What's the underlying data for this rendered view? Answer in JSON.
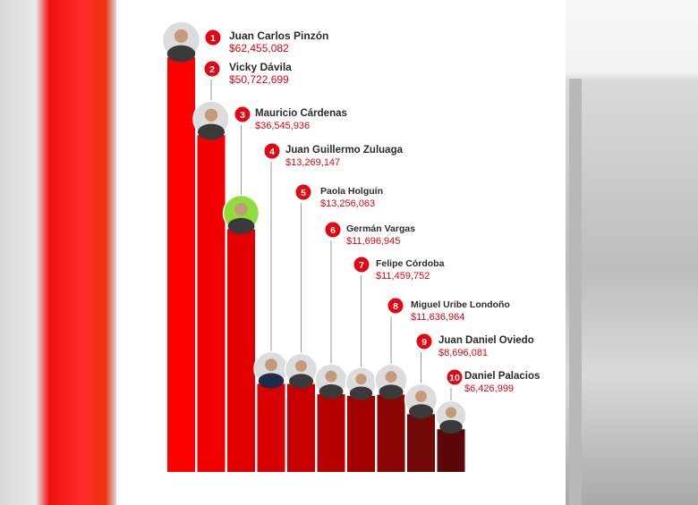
{
  "chart_data": {
    "type": "bar",
    "categories": [
      "Juan Carlos Pinzón",
      "Vicky Dávila",
      "Mauricio Cárdenas",
      "Juan Guillermo Zuluaga",
      "Paola Holguín",
      "Germán Vargas",
      "Felipe Córdoba",
      "Miguel Uribe Londoño",
      "Juan Daniel Oviedo",
      "Daniel Palacios"
    ],
    "ranks": [
      "1",
      "2",
      "3",
      "4",
      "5",
      "6",
      "7",
      "8",
      "9",
      "10"
    ],
    "value_labels": [
      "$62,455,082",
      "$50,722,699",
      "$36,545,936",
      "$13,269,147",
      "$13,256,063",
      "$11,696,945",
      "$11,459,752",
      "$11,636,964",
      "$8,696,081",
      "$6,426,999"
    ],
    "values": [
      62455082,
      50722699,
      36545936,
      13269147,
      13256063,
      11696945,
      11459752,
      11636964,
      8696081,
      6426999
    ],
    "bar_colors": [
      "#ff0000",
      "#f20000",
      "#e30000",
      "#d80000",
      "#c90000",
      "#b90000",
      "#a50000",
      "#8c0505",
      "#730808",
      "#5c0707"
    ],
    "accent_color": "#e30613",
    "ylim": [
      0,
      65000000
    ],
    "grid": false,
    "legend": "none"
  }
}
